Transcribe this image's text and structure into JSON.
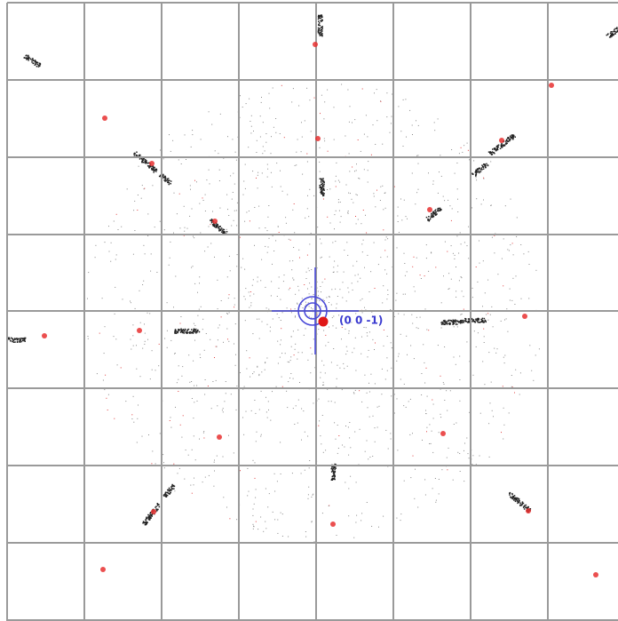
{
  "label": "(0 0 -1)"
}
